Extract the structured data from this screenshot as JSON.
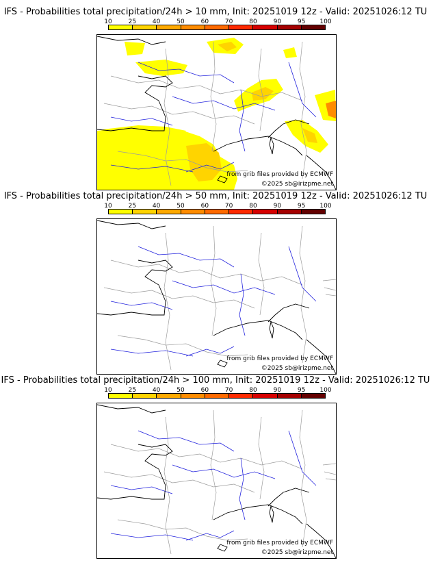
{
  "legend": {
    "labels": [
      "10",
      "25",
      "40",
      "50",
      "60",
      "70",
      "80",
      "90",
      "95",
      "100"
    ],
    "colors": [
      "#ffff00",
      "#ffd400",
      "#ffaa00",
      "#ff8c00",
      "#ff6a00",
      "#ff2a00",
      "#d70000",
      "#a50000",
      "#640000"
    ]
  },
  "colors": {
    "rivers": "#2020dd",
    "borders": "#9c9c9c",
    "coast": "#000000"
  },
  "panels": [
    {
      "title": "IFS - Probabilities total precipitation/24h > 10 mm, Init: 20251019 12z - Valid: 20251026:12 TU",
      "source": "from grib files provided by ECMWF",
      "copyright": "©2025 sb@irizpme.net"
    },
    {
      "title": "IFS - Probabilities total precipitation/24h > 50 mm, Init: 20251019 12z - Valid: 20251026:12 TU",
      "source": "from grib files provided by ECMWF",
      "copyright": "©2025 sb@irizpme.net"
    },
    {
      "title": "IFS - Probabilities total precipitation/24h > 100 mm, Init: 20251019 12z - Valid: 20251026:12 TU",
      "source": "from grib files provided by ECMWF",
      "copyright": "©2025 sb@irizpme.net"
    }
  ]
}
